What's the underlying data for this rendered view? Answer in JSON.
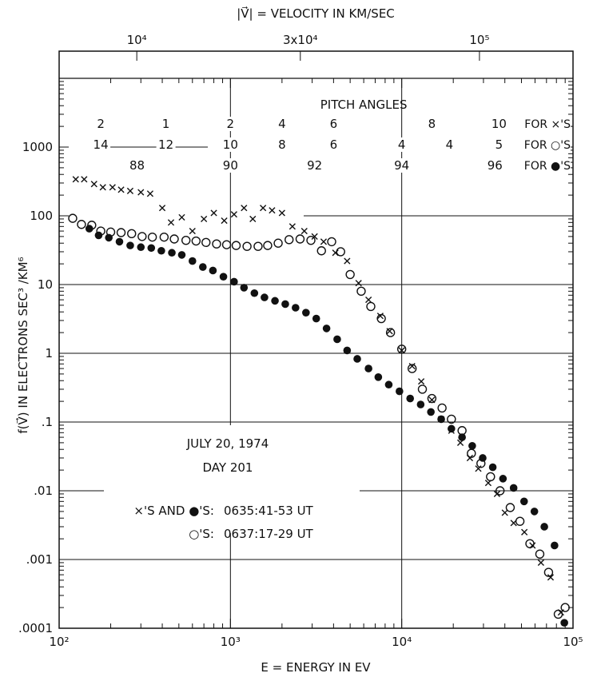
{
  "chart_data": {
    "type": "scatter",
    "title": "",
    "top_axis_label": "|V⃗| = VELOCITY IN KM/SEC",
    "top_tick_labels": [
      "10⁴",
      "3x10⁴",
      "10⁵"
    ],
    "top_tick_energies_ev": [
      284,
      2559,
      28430
    ],
    "xlabel": "E = ENERGY IN EV",
    "ylabel": "f(V⃗) IN ELECTRONS SEC³ /KM⁶",
    "x_scale": "log",
    "y_scale": "log",
    "xlim": [
      100,
      100000
    ],
    "ylim": [
      0.0001,
      10000
    ],
    "x_tick_labels": [
      "10²",
      "10³",
      "10⁴",
      "10⁵"
    ],
    "y_tick_labels": [
      ".0001",
      ".001",
      ".01",
      ".1",
      "1",
      "10",
      "100",
      "1000"
    ],
    "y_tick_values": [
      0.0001,
      0.001,
      0.01,
      0.1,
      1,
      10,
      100,
      1000
    ],
    "pitch_angles": {
      "heading": "PITCH ANGLES",
      "rows": [
        {
          "label": "FOR ×'S",
          "entries": [
            {
              "text": "2",
              "energy": 175
            },
            {
              "text": "1",
              "energy": 420
            },
            {
              "text": "2",
              "energy": 1000
            },
            {
              "text": "4",
              "energy": 2000
            },
            {
              "text": "6",
              "energy": 4000
            },
            {
              "text": "8",
              "energy": 15000
            },
            {
              "text": "10",
              "energy": 37000
            }
          ]
        },
        {
          "label": "FOR ○'S",
          "entries": [
            {
              "text": "14",
              "energy": 175
            },
            {
              "text": "12",
              "energy": 420
            },
            {
              "text": "10",
              "energy": 1000
            },
            {
              "text": "8",
              "energy": 2000
            },
            {
              "text": "6",
              "energy": 4000
            },
            {
              "text": "4",
              "energy": 10000
            },
            {
              "text": "4",
              "energy": 19000
            },
            {
              "text": "5",
              "energy": 37000
            }
          ]
        },
        {
          "label": "FOR ●'S",
          "entries": [
            {
              "text": "88",
              "energy": 285
            },
            {
              "text": "90",
              "energy": 1000
            },
            {
              "text": "92",
              "energy": 3100
            },
            {
              "text": "94",
              "energy": 10000
            },
            {
              "text": "96",
              "energy": 35000
            }
          ]
        }
      ]
    },
    "annotations": {
      "date": "JULY 20, 1974",
      "day": "DAY 201",
      "line1_label": "×'S AND ●'S:",
      "line1_time": "0635:41-53 UT",
      "line2_label": "○'S:",
      "line2_time": "0637:17-29 UT"
    },
    "grid": "partial",
    "series": [
      {
        "marker": "x",
        "points": [
          [
            125,
            340
          ],
          [
            140,
            340
          ],
          [
            160,
            290
          ],
          [
            180,
            260
          ],
          [
            205,
            260
          ],
          [
            230,
            240
          ],
          [
            260,
            230
          ],
          [
            300,
            220
          ],
          [
            340,
            210
          ],
          [
            400,
            130
          ],
          [
            450,
            80
          ],
          [
            520,
            95
          ],
          [
            600,
            60
          ],
          [
            700,
            90
          ],
          [
            800,
            110
          ],
          [
            920,
            85
          ],
          [
            1050,
            105
          ],
          [
            1200,
            130
          ],
          [
            1350,
            90
          ],
          [
            1550,
            130
          ],
          [
            1750,
            120
          ],
          [
            2000,
            110
          ],
          [
            2300,
            70
          ],
          [
            2700,
            60
          ],
          [
            3100,
            50
          ],
          [
            3500,
            42
          ],
          [
            4100,
            29
          ],
          [
            4800,
            22
          ],
          [
            5600,
            10.5
          ],
          [
            6400,
            6
          ],
          [
            7500,
            3.5
          ],
          [
            8500,
            2.1
          ],
          [
            10000,
            1.1
          ],
          [
            11500,
            0.65
          ],
          [
            13000,
            0.39
          ],
          [
            15000,
            0.21
          ],
          [
            17000,
            0.11
          ],
          [
            19500,
            0.075
          ],
          [
            22000,
            0.05
          ],
          [
            25000,
            0.03
          ],
          [
            28000,
            0.021
          ],
          [
            32000,
            0.013
          ],
          [
            36000,
            0.009
          ],
          [
            40000,
            0.0048
          ],
          [
            45000,
            0.0034
          ],
          [
            52000,
            0.0025
          ],
          [
            58000,
            0.0016
          ],
          [
            65000,
            0.0009
          ],
          [
            74000,
            0.00055
          ],
          [
            85000,
            0.00017
          ]
        ]
      },
      {
        "marker": "open-circle",
        "points": [
          [
            120,
            92
          ],
          [
            135,
            75
          ],
          [
            155,
            73
          ],
          [
            175,
            60
          ],
          [
            200,
            58
          ],
          [
            230,
            57
          ],
          [
            265,
            55
          ],
          [
            305,
            50
          ],
          [
            350,
            49
          ],
          [
            410,
            49
          ],
          [
            470,
            46
          ],
          [
            550,
            44
          ],
          [
            630,
            43
          ],
          [
            720,
            41
          ],
          [
            830,
            39
          ],
          [
            950,
            38
          ],
          [
            1080,
            37
          ],
          [
            1250,
            36
          ],
          [
            1450,
            36
          ],
          [
            1650,
            37
          ],
          [
            1900,
            40
          ],
          [
            2200,
            45
          ],
          [
            2550,
            46
          ],
          [
            2950,
            44
          ],
          [
            3400,
            31
          ],
          [
            3900,
            42
          ],
          [
            4400,
            30
          ],
          [
            5000,
            14
          ],
          [
            5800,
            8
          ],
          [
            6600,
            4.8
          ],
          [
            7600,
            3.2
          ],
          [
            8600,
            2.0
          ],
          [
            10000,
            1.15
          ],
          [
            11500,
            0.6
          ],
          [
            13200,
            0.3
          ],
          [
            15000,
            0.22
          ],
          [
            17200,
            0.16
          ],
          [
            19500,
            0.11
          ],
          [
            22500,
            0.075
          ],
          [
            25500,
            0.035
          ],
          [
            29000,
            0.025
          ],
          [
            33000,
            0.016
          ],
          [
            37500,
            0.01
          ],
          [
            43000,
            0.0057
          ],
          [
            49000,
            0.0036
          ],
          [
            56000,
            0.0017
          ],
          [
            64000,
            0.0012
          ],
          [
            72000,
            0.00065
          ],
          [
            82000,
            0.00016
          ],
          [
            90000,
            0.0002
          ]
        ]
      },
      {
        "marker": "filled-circle",
        "points": [
          [
            150,
            65
          ],
          [
            170,
            52
          ],
          [
            195,
            48
          ],
          [
            225,
            42
          ],
          [
            260,
            37
          ],
          [
            300,
            35
          ],
          [
            345,
            34
          ],
          [
            395,
            31
          ],
          [
            455,
            29
          ],
          [
            520,
            27
          ],
          [
            600,
            22
          ],
          [
            690,
            18
          ],
          [
            790,
            16
          ],
          [
            910,
            13
          ],
          [
            1050,
            11
          ],
          [
            1200,
            9
          ],
          [
            1380,
            7.5
          ],
          [
            1580,
            6.5
          ],
          [
            1820,
            5.8
          ],
          [
            2090,
            5.2
          ],
          [
            2400,
            4.6
          ],
          [
            2760,
            3.9
          ],
          [
            3170,
            3.2
          ],
          [
            3640,
            2.3
          ],
          [
            4200,
            1.6
          ],
          [
            4800,
            1.1
          ],
          [
            5500,
            0.83
          ],
          [
            6400,
            0.6
          ],
          [
            7300,
            0.45
          ],
          [
            8400,
            0.35
          ],
          [
            9700,
            0.28
          ],
          [
            11200,
            0.22
          ],
          [
            12900,
            0.18
          ],
          [
            14800,
            0.14
          ],
          [
            17000,
            0.11
          ],
          [
            19500,
            0.08
          ],
          [
            22500,
            0.06
          ],
          [
            25800,
            0.045
          ],
          [
            29700,
            0.03
          ],
          [
            34000,
            0.022
          ],
          [
            39000,
            0.015
          ],
          [
            45000,
            0.011
          ],
          [
            51800,
            0.007
          ],
          [
            59500,
            0.005
          ],
          [
            68000,
            0.003
          ],
          [
            78000,
            0.0016
          ],
          [
            89000,
            0.00012
          ]
        ]
      }
    ]
  }
}
